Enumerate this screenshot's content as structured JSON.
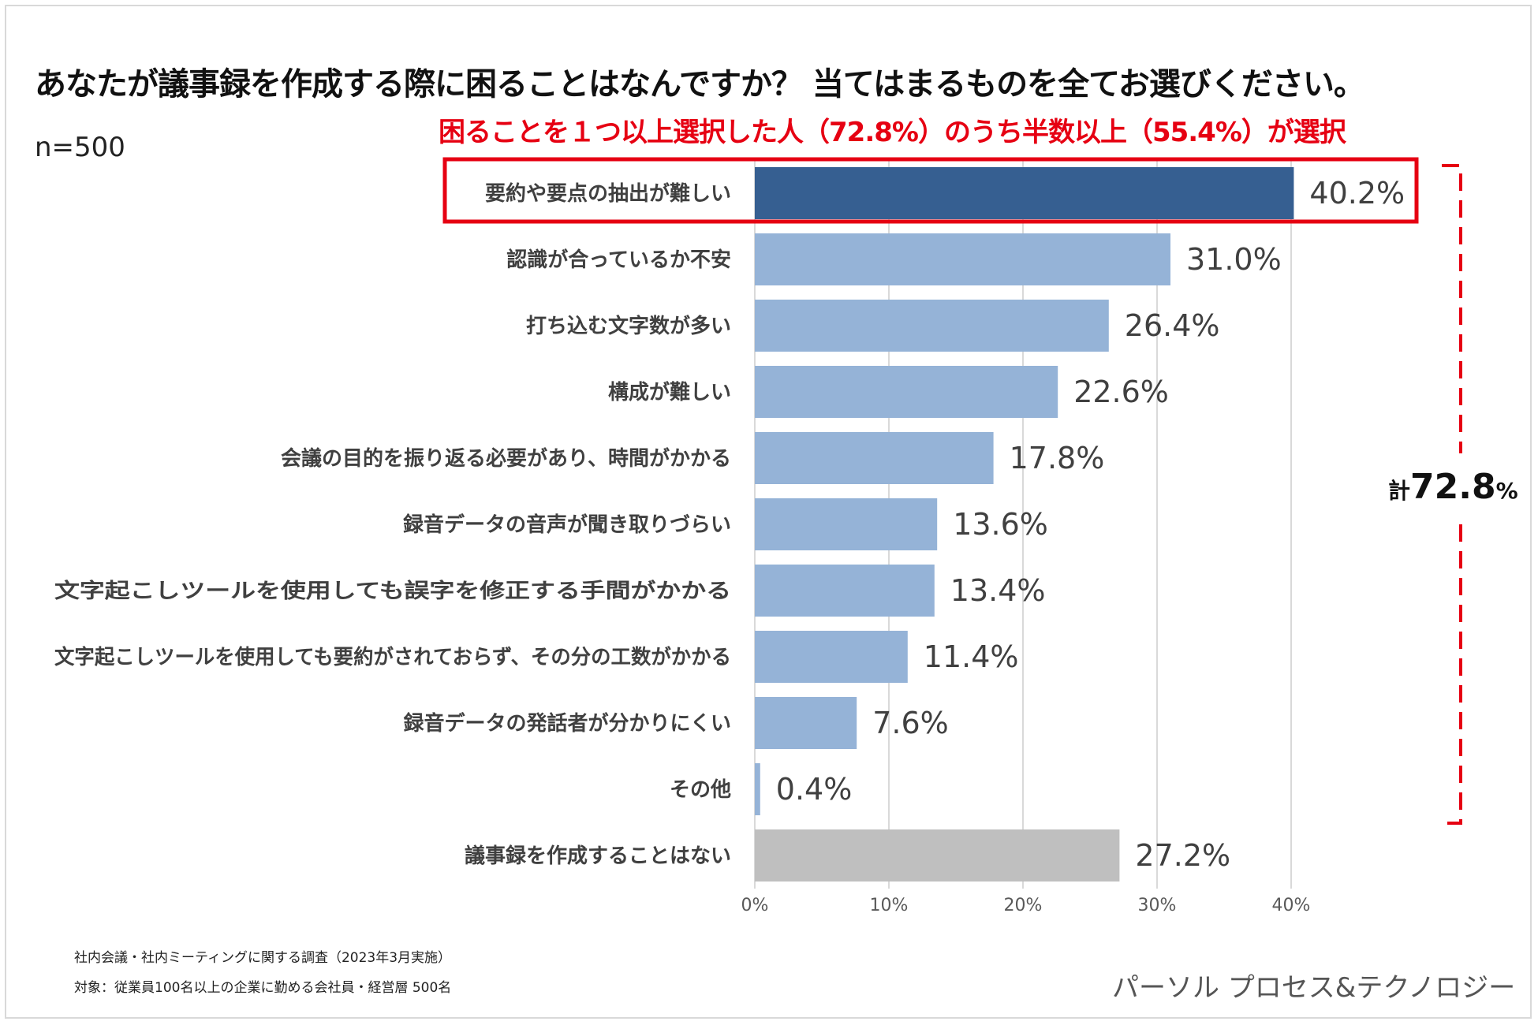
{
  "title": "あなたが議事録を作成する際に困ることはなんですか？ 当てはまるものを全てお選びください。",
  "subtitle": "困ることを１つ以上選択した人（72.8%）のうち半数以上（55.4%）が選択",
  "sample_size": "n=500",
  "total": {
    "prefix": "計",
    "value": "72.8",
    "unit": "%"
  },
  "notes": [
    "社内会議・社内ミーティングに関する調査（2023年3月実施）",
    "対象：従業員100名以上の企業に勤める会社員・経営層 500名"
  ],
  "brand": "パーソル プロセス&テクノロジー",
  "colors": {
    "highlight_bar": "#365f91",
    "bar": "#95b3d7",
    "none_bar": "#bfbfbf",
    "accent_red": "#e60012",
    "gridline": "#d9d9d9"
  },
  "chart_data": {
    "type": "bar",
    "orientation": "horizontal",
    "categories": [
      "要約や要点の抽出が難しい",
      "認識が合っているか不安",
      "打ち込む文字数が多い",
      "構成が難しい",
      "会議の目的を振り返る必要があり、時間がかかる",
      "録音データの音声が聞き取りづらい",
      "文字起こしツールを使用しても誤字を修正する手間がかかる",
      "文字起こしツールを使用しても要約がされておらず、その分の工数がかかる",
      "録音データの発話者が分かりにくい",
      "その他",
      "議事録を作成することはない"
    ],
    "values": [
      40.2,
      31.0,
      26.4,
      22.6,
      17.8,
      13.6,
      13.4,
      11.4,
      7.6,
      0.4,
      27.2
    ],
    "value_labels": [
      "40.2%",
      "31.0%",
      "26.4%",
      "22.6%",
      "17.8%",
      "13.6%",
      "13.4%",
      "11.4%",
      "7.6%",
      "0.4%",
      "27.2%"
    ],
    "highlight_index": 0,
    "none_index": 10,
    "xlim": [
      0,
      40
    ],
    "xticks": [
      0,
      10,
      20,
      30,
      40
    ],
    "xtick_labels": [
      "0%",
      "10%",
      "20%",
      "30%",
      "40%"
    ],
    "grid": true,
    "legend": "none"
  }
}
